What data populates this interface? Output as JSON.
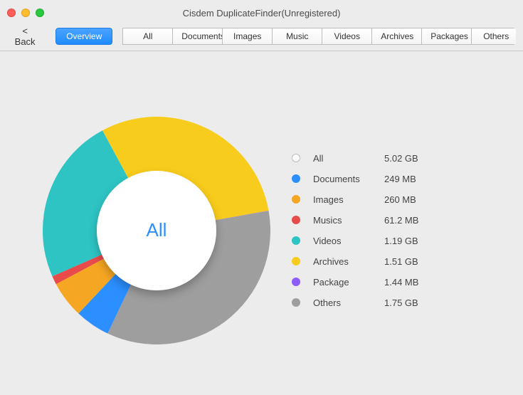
{
  "window": {
    "title": "Cisdem DuplicateFinder(Unregistered)"
  },
  "toolbar": {
    "back": "< Back",
    "tabs": {
      "overview": "Overview",
      "all": "All",
      "documents": "Documents",
      "images": "Images",
      "music": "Music",
      "videos": "Videos",
      "archives": "Archives",
      "packages": "Packages",
      "others": "Others"
    }
  },
  "chart": {
    "type": "donut",
    "center_label": "All",
    "center_label_color": "#2b8fff",
    "background_color": "#ececec",
    "inner_radius": 84,
    "outer_radius": 160,
    "slices": [
      {
        "key": "others",
        "value": 1.75,
        "color": "#9e9e9e"
      },
      {
        "key": "documents",
        "value": 0.249,
        "color": "#2b8fff"
      },
      {
        "key": "images",
        "value": 0.26,
        "color": "#f5a623"
      },
      {
        "key": "musics",
        "value": 0.0612,
        "color": "#e94b4b"
      },
      {
        "key": "videos",
        "value": 1.19,
        "color": "#2ec4c4"
      },
      {
        "key": "archives",
        "value": 1.51,
        "color": "#f8cc1c"
      },
      {
        "key": "package",
        "value": 0.0014,
        "color": "#8b5cf6"
      }
    ]
  },
  "legend": {
    "items": [
      {
        "label": "All",
        "value": "5.02 GB",
        "color": "#ffffff",
        "outline": "#bbbbbb"
      },
      {
        "label": "Documents",
        "value": "249 MB",
        "color": "#2b8fff"
      },
      {
        "label": "Images",
        "value": "260 MB",
        "color": "#f5a623"
      },
      {
        "label": "Musics",
        "value": "61.2 MB",
        "color": "#e94b4b"
      },
      {
        "label": "Videos",
        "value": "1.19 GB",
        "color": "#2ec4c4"
      },
      {
        "label": "Archives",
        "value": "1.51 GB",
        "color": "#f8cc1c"
      },
      {
        "label": "Package",
        "value": "1.44 MB",
        "color": "#8b5cf6"
      },
      {
        "label": "Others",
        "value": "1.75 GB",
        "color": "#9e9e9e"
      }
    ]
  }
}
